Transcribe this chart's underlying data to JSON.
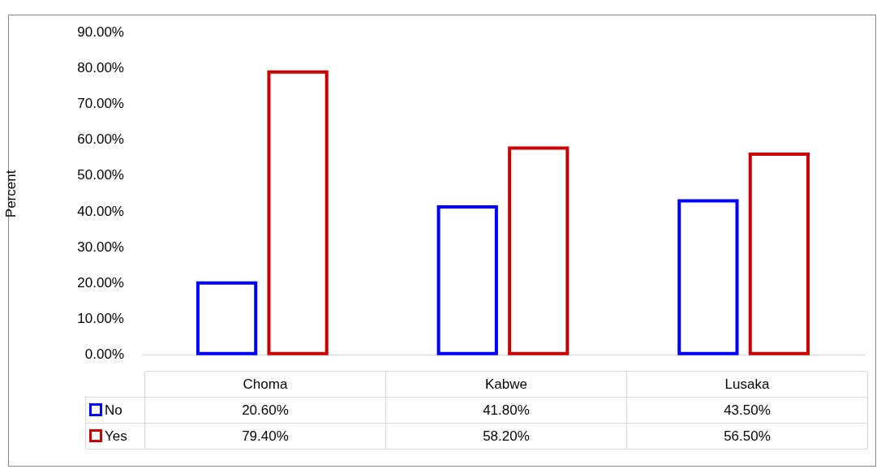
{
  "chart_data": {
    "type": "bar",
    "ylabel": "Percent",
    "categories": [
      "Choma",
      "Kabwe",
      "Lusaka"
    ],
    "series": [
      {
        "name": "No",
        "color": "#0000ff",
        "values": [
          20.6,
          41.8,
          43.5
        ],
        "value_labels": [
          "20.60%",
          "41.80%",
          "43.50%"
        ]
      },
      {
        "name": "Yes",
        "color": "#cc0000",
        "values": [
          79.4,
          58.2,
          56.5
        ],
        "value_labels": [
          "79.40%",
          "58.20%",
          "56.50%"
        ]
      }
    ],
    "ylim": [
      0,
      90
    ],
    "yticks": [
      {
        "value": 0,
        "label": "0.00%"
      },
      {
        "value": 10,
        "label": "10.00%"
      },
      {
        "value": 20,
        "label": "20.00%"
      },
      {
        "value": 30,
        "label": "30.00%"
      },
      {
        "value": 40,
        "label": "40.00%"
      },
      {
        "value": 50,
        "label": "50.00%"
      },
      {
        "value": 60,
        "label": "60.00%"
      },
      {
        "value": 70,
        "label": "70.00%"
      },
      {
        "value": 80,
        "label": "80.00%"
      },
      {
        "value": 90,
        "label": "90.00%"
      }
    ],
    "grid": false,
    "legend": "bottom"
  }
}
